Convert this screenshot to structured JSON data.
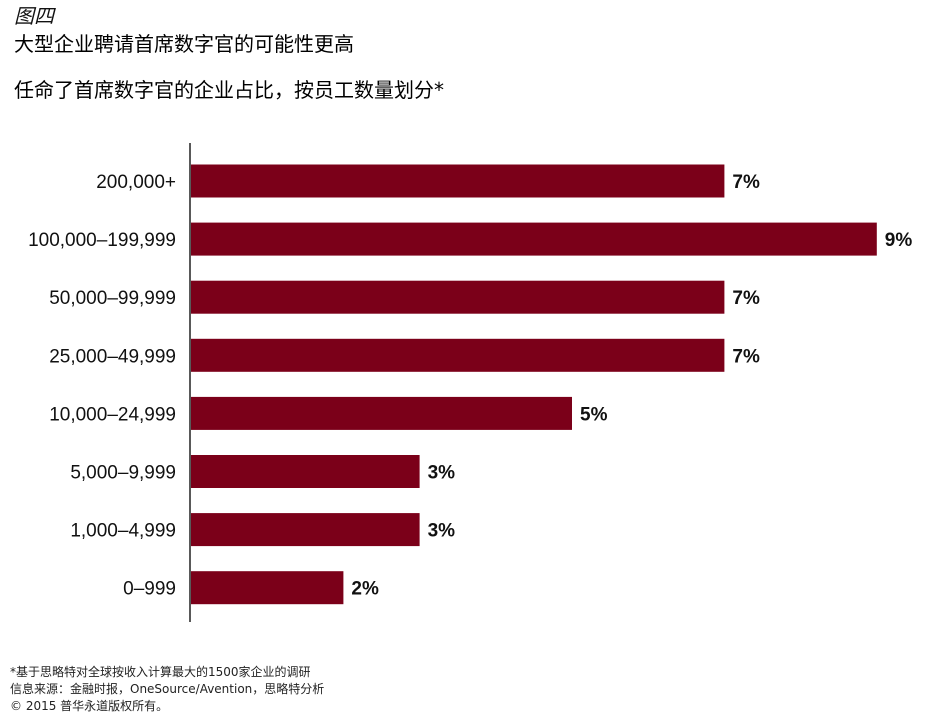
{
  "figure_label": "图四",
  "title": "大型企业聘请首席数字官的可能性更高",
  "subtitle": "任命了首席数字官的企业占比，按员工数量划分*",
  "colors": {
    "bar": "#7b0019",
    "axis": "#222222"
  },
  "chart_data": {
    "type": "bar",
    "orientation": "horizontal",
    "title": "任命了首席数字官的企业占比，按员工数量划分*",
    "categories": [
      "200,000+",
      "100,000–199,999",
      "50,000–99,999",
      "25,000–49,999",
      "10,000–24,999",
      "5,000–9,999",
      "1,000–4,999",
      "0–999"
    ],
    "values": [
      7,
      9,
      7,
      7,
      5,
      3,
      3,
      2
    ],
    "value_labels": [
      "7%",
      "9%",
      "7%",
      "7%",
      "5%",
      "3%",
      "3%",
      "2%"
    ],
    "unit": "%",
    "xlim": [
      0,
      9
    ],
    "grid": false,
    "legend": "none"
  },
  "footnotes": {
    "note": "*基于思略特对全球按收入计算最大的1500家企业的调研",
    "source": "信息来源：金融时报，OneSource/Avention，思略特分析",
    "copyright": "© 2015 普华永道版权所有。"
  }
}
